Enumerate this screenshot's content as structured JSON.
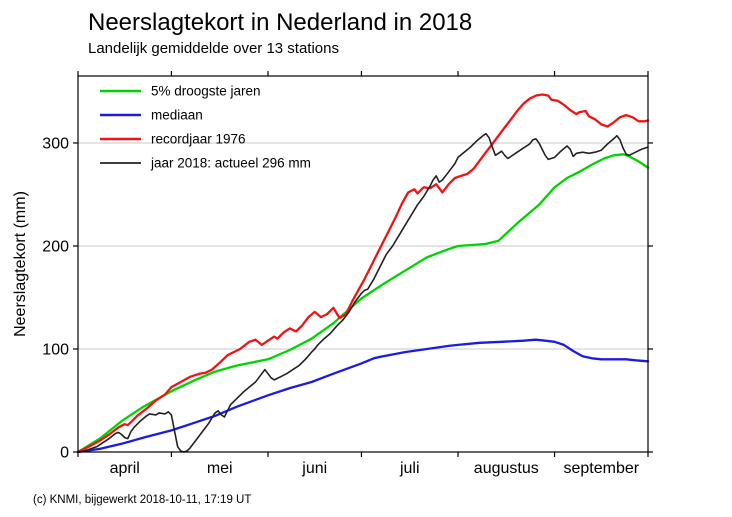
{
  "title": "Neerslagtekort in Nederland in 2018",
  "subtitle": "Landelijk gemiddelde over 13 stations",
  "footer": "(c) KNMI, bijgewerkt 2018-10-11, 17:19 UT",
  "chart_data": {
    "type": "line",
    "title": "Neerslagtekort in Nederland in 2018",
    "subtitle": "Landelijk gemiddelde over 13 stations",
    "xlabel": "",
    "ylabel": "Neerslagtekort (mm)",
    "ylim": [
      0,
      365
    ],
    "yticks": [
      0,
      100,
      200,
      300
    ],
    "grid": "horizontal gridlines at 100, 200, 300",
    "grid_color": "#c9c9c9",
    "axis_color": "#000000",
    "x_unit": "days since 1 april",
    "xlim": [
      0,
      183
    ],
    "month_boundaries": [
      0,
      30,
      61,
      91,
      122,
      153,
      183
    ],
    "month_labels": [
      "april",
      "mei",
      "juni",
      "juli",
      "augustus",
      "september"
    ],
    "legend_position": "top-left inside plot",
    "series": [
      {
        "name": "5% droogste jaren",
        "color": "#00d400",
        "width": 2.3,
        "points": [
          [
            0,
            0
          ],
          [
            7,
            13
          ],
          [
            14,
            30
          ],
          [
            21,
            44
          ],
          [
            30,
            59
          ],
          [
            37,
            69
          ],
          [
            44,
            78
          ],
          [
            51,
            84
          ],
          [
            61,
            90
          ],
          [
            68,
            99
          ],
          [
            75,
            110
          ],
          [
            82,
            125
          ],
          [
            91,
            149
          ],
          [
            98,
            163
          ],
          [
            105,
            176
          ],
          [
            112,
            189
          ],
          [
            119,
            197
          ],
          [
            122,
            200
          ],
          [
            127,
            201
          ],
          [
            131,
            202
          ],
          [
            135,
            205
          ],
          [
            141,
            222
          ],
          [
            148,
            240
          ],
          [
            153,
            257
          ],
          [
            157,
            266
          ],
          [
            161,
            272
          ],
          [
            165,
            279
          ],
          [
            169,
            285
          ],
          [
            172,
            288
          ],
          [
            175,
            289
          ],
          [
            177,
            287
          ],
          [
            180,
            282
          ],
          [
            183,
            276
          ]
        ]
      },
      {
        "name": "mediaan",
        "color": "#1c1ce0",
        "width": 2.3,
        "points": [
          [
            0,
            0
          ],
          [
            7,
            3
          ],
          [
            14,
            8
          ],
          [
            21,
            14
          ],
          [
            30,
            21
          ],
          [
            37,
            28
          ],
          [
            44,
            35
          ],
          [
            51,
            44
          ],
          [
            61,
            55
          ],
          [
            68,
            62
          ],
          [
            75,
            68
          ],
          [
            82,
            76
          ],
          [
            91,
            86
          ],
          [
            95,
            91
          ],
          [
            98,
            93
          ],
          [
            105,
            97
          ],
          [
            112,
            100
          ],
          [
            119,
            103
          ],
          [
            122,
            104
          ],
          [
            129,
            106
          ],
          [
            136,
            107
          ],
          [
            143,
            108
          ],
          [
            147,
            109
          ],
          [
            150,
            108
          ],
          [
            153,
            107
          ],
          [
            156,
            104
          ],
          [
            159,
            98
          ],
          [
            162,
            93
          ],
          [
            165,
            91
          ],
          [
            168,
            90
          ],
          [
            172,
            90
          ],
          [
            176,
            90
          ],
          [
            179,
            89
          ],
          [
            183,
            88
          ]
        ]
      },
      {
        "name": "recordjaar 1976",
        "color": "#f01414",
        "width": 2.3,
        "points": [
          [
            0,
            0
          ],
          [
            4,
            6
          ],
          [
            7,
            11
          ],
          [
            10,
            17
          ],
          [
            13,
            24
          ],
          [
            15,
            27
          ],
          [
            16,
            26
          ],
          [
            19,
            35
          ],
          [
            22,
            42
          ],
          [
            25,
            50
          ],
          [
            28,
            56
          ],
          [
            30,
            63
          ],
          [
            33,
            68
          ],
          [
            36,
            73
          ],
          [
            39,
            76
          ],
          [
            41,
            77
          ],
          [
            43,
            80
          ],
          [
            46,
            88
          ],
          [
            48,
            94
          ],
          [
            50,
            97
          ],
          [
            52,
            100
          ],
          [
            55,
            107
          ],
          [
            57,
            109
          ],
          [
            59,
            104
          ],
          [
            61,
            108
          ],
          [
            63,
            112
          ],
          [
            64,
            110
          ],
          [
            66,
            116
          ],
          [
            68,
            120
          ],
          [
            70,
            117
          ],
          [
            72,
            123
          ],
          [
            74,
            131
          ],
          [
            76,
            136
          ],
          [
            78,
            131
          ],
          [
            80,
            134
          ],
          [
            82,
            140
          ],
          [
            84,
            130
          ],
          [
            86,
            134
          ],
          [
            88,
            146
          ],
          [
            90,
            157
          ],
          [
            92,
            168
          ],
          [
            94,
            180
          ],
          [
            96,
            192
          ],
          [
            98,
            204
          ],
          [
            100,
            216
          ],
          [
            102,
            228
          ],
          [
            104,
            241
          ],
          [
            106,
            252
          ],
          [
            108,
            255
          ],
          [
            109,
            251
          ],
          [
            111,
            257
          ],
          [
            113,
            256
          ],
          [
            115,
            260
          ],
          [
            117,
            252
          ],
          [
            119,
            260
          ],
          [
            121,
            266
          ],
          [
            123,
            268
          ],
          [
            125,
            270
          ],
          [
            127,
            275
          ],
          [
            129,
            283
          ],
          [
            131,
            291
          ],
          [
            133,
            299
          ],
          [
            135,
            307
          ],
          [
            137,
            315
          ],
          [
            139,
            323
          ],
          [
            141,
            331
          ],
          [
            143,
            338
          ],
          [
            145,
            343
          ],
          [
            147,
            346
          ],
          [
            149,
            347
          ],
          [
            151,
            346
          ],
          [
            152,
            342
          ],
          [
            154,
            341
          ],
          [
            156,
            337
          ],
          [
            158,
            332
          ],
          [
            160,
            328
          ],
          [
            161,
            330
          ],
          [
            163,
            331
          ],
          [
            164,
            326
          ],
          [
            166,
            323
          ],
          [
            168,
            318
          ],
          [
            170,
            316
          ],
          [
            172,
            320
          ],
          [
            174,
            325
          ],
          [
            176,
            327
          ],
          [
            178,
            325
          ],
          [
            180,
            321
          ],
          [
            182,
            321
          ],
          [
            183,
            322
          ]
        ]
      },
      {
        "name": "jaar 2018: actueel 296 mm",
        "color": "#222222",
        "width": 1.6,
        "points": [
          [
            0,
            0
          ],
          [
            2,
            1
          ],
          [
            4,
            3
          ],
          [
            6,
            5
          ],
          [
            8,
            9
          ],
          [
            10,
            13
          ],
          [
            12,
            18
          ],
          [
            13,
            19
          ],
          [
            14,
            17
          ],
          [
            15,
            14
          ],
          [
            16,
            13
          ],
          [
            17,
            20
          ],
          [
            18,
            24
          ],
          [
            20,
            30
          ],
          [
            22,
            35
          ],
          [
            23,
            37
          ],
          [
            25,
            36
          ],
          [
            26,
            38
          ],
          [
            28,
            37
          ],
          [
            29,
            39
          ],
          [
            30,
            36
          ],
          [
            31,
            20
          ],
          [
            32,
            5
          ],
          [
            33,
            1
          ],
          [
            34,
            0
          ],
          [
            35,
            1
          ],
          [
            36,
            4
          ],
          [
            38,
            12
          ],
          [
            40,
            20
          ],
          [
            42,
            28
          ],
          [
            43,
            33
          ],
          [
            44,
            38
          ],
          [
            45,
            40
          ],
          [
            46,
            36
          ],
          [
            47,
            34
          ],
          [
            48,
            40
          ],
          [
            49,
            46
          ],
          [
            51,
            52
          ],
          [
            53,
            58
          ],
          [
            55,
            63
          ],
          [
            57,
            68
          ],
          [
            58,
            72
          ],
          [
            59,
            76
          ],
          [
            60,
            80
          ],
          [
            61,
            76
          ],
          [
            62,
            72
          ],
          [
            63,
            70
          ],
          [
            65,
            73
          ],
          [
            67,
            76
          ],
          [
            69,
            80
          ],
          [
            71,
            84
          ],
          [
            73,
            90
          ],
          [
            75,
            97
          ],
          [
            76,
            100
          ],
          [
            77,
            104
          ],
          [
            79,
            110
          ],
          [
            81,
            115
          ],
          [
            83,
            122
          ],
          [
            85,
            128
          ],
          [
            87,
            136
          ],
          [
            89,
            146
          ],
          [
            91,
            154
          ],
          [
            92,
            157
          ],
          [
            93,
            158
          ],
          [
            95,
            168
          ],
          [
            97,
            180
          ],
          [
            99,
            192
          ],
          [
            101,
            200
          ],
          [
            103,
            210
          ],
          [
            105,
            220
          ],
          [
            107,
            230
          ],
          [
            109,
            240
          ],
          [
            111,
            248
          ],
          [
            113,
            258
          ],
          [
            114,
            264
          ],
          [
            115,
            268
          ],
          [
            116,
            262
          ],
          [
            117,
            264
          ],
          [
            119,
            272
          ],
          [
            121,
            280
          ],
          [
            122,
            286
          ],
          [
            124,
            291
          ],
          [
            126,
            296
          ],
          [
            128,
            302
          ],
          [
            130,
            307
          ],
          [
            131,
            309
          ],
          [
            132,
            305
          ],
          [
            133,
            296
          ],
          [
            134,
            288
          ],
          [
            135,
            290
          ],
          [
            136,
            292
          ],
          [
            137,
            288
          ],
          [
            138,
            285
          ],
          [
            139,
            287
          ],
          [
            141,
            291
          ],
          [
            143,
            295
          ],
          [
            145,
            299
          ],
          [
            146,
            303
          ],
          [
            147,
            304
          ],
          [
            148,
            300
          ],
          [
            149,
            294
          ],
          [
            150,
            288
          ],
          [
            151,
            284
          ],
          [
            153,
            286
          ],
          [
            155,
            292
          ],
          [
            157,
            297
          ],
          [
            158,
            294
          ],
          [
            159,
            287
          ],
          [
            160,
            290
          ],
          [
            162,
            291
          ],
          [
            164,
            290
          ],
          [
            166,
            291
          ],
          [
            168,
            293
          ],
          [
            170,
            299
          ],
          [
            172,
            304
          ],
          [
            173,
            307
          ],
          [
            174,
            303
          ],
          [
            175,
            295
          ],
          [
            176,
            289
          ],
          [
            177,
            288
          ],
          [
            179,
            291
          ],
          [
            181,
            294
          ],
          [
            183,
            296
          ]
        ]
      }
    ]
  }
}
